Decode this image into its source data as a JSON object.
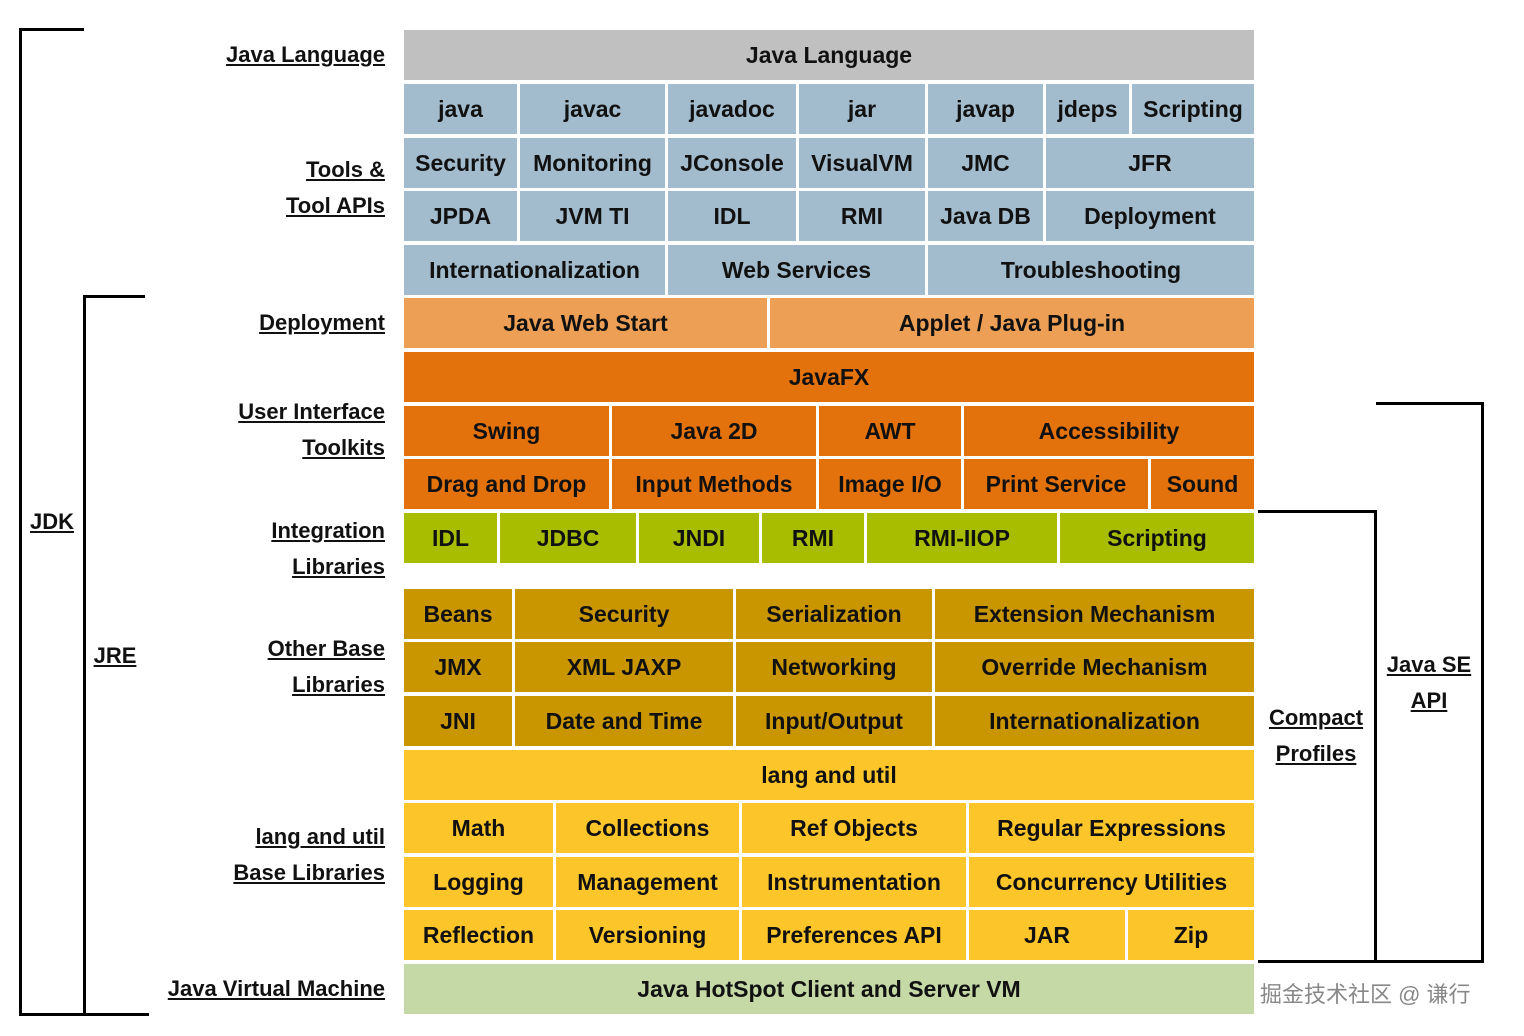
{
  "colors": {
    "language": "#c0c0c0",
    "tools": "#a3bccd",
    "deployment": "#ec9f55",
    "ui": "#e4720c",
    "integration": "#a8bd00",
    "other_base": "#c99600",
    "lang_util": "#fcc52a",
    "jvm": "#c5d9a6"
  },
  "row_labels": [
    {
      "lines": [
        "Java Language"
      ]
    },
    {
      "lines": [
        "Tools &",
        "Tool APIs"
      ]
    },
    {
      "lines": [
        "Deployment"
      ]
    },
    {
      "lines": [
        "User Interface",
        "Toolkits"
      ]
    },
    {
      "lines": [
        "Integration",
        "Libraries"
      ]
    },
    {
      "lines": [
        "Other Base",
        "Libraries"
      ]
    },
    {
      "lines": [
        "lang and util",
        "Base Libraries"
      ]
    },
    {
      "lines": [
        "Java Virtual Machine"
      ]
    }
  ],
  "side_labels": {
    "jdk": "JDK",
    "jre": "JRE",
    "compact_profiles": [
      "Compact",
      "Profiles"
    ],
    "java_se_api": [
      "Java SE",
      "API"
    ]
  },
  "groups": {
    "language": {
      "rows": [
        [
          "Java Language"
        ]
      ]
    },
    "tools": {
      "rows": [
        [
          "java",
          "javac",
          "javadoc",
          "jar",
          "javap",
          "jdeps",
          "Scripting"
        ],
        [
          "Security",
          "Monitoring",
          "JConsole",
          "VisualVM",
          "JMC",
          "JFR"
        ],
        [
          "JPDA",
          "JVM TI",
          "IDL",
          "RMI",
          "Java DB",
          "Deployment"
        ],
        [
          "Internationalization",
          "Web Services",
          "Troubleshooting"
        ]
      ]
    },
    "deployment": {
      "rows": [
        [
          "Java Web Start",
          "Applet / Java Plug-in"
        ]
      ]
    },
    "ui": {
      "rows": [
        [
          "JavaFX"
        ],
        [
          "Swing",
          "Java 2D",
          "AWT",
          "Accessibility"
        ],
        [
          "Drag and Drop",
          "Input Methods",
          "Image I/O",
          "Print Service",
          "Sound"
        ]
      ]
    },
    "integration": {
      "rows": [
        [
          "IDL",
          "JDBC",
          "JNDI",
          "RMI",
          "RMI-IIOP",
          "Scripting"
        ]
      ]
    },
    "other_base": {
      "rows": [
        [
          "Beans",
          "Security",
          "Serialization",
          "Extension Mechanism"
        ],
        [
          "JMX",
          "XML JAXP",
          "Networking",
          "Override Mechanism"
        ],
        [
          "JNI",
          "Date and Time",
          "Input/Output",
          "Internationalization"
        ]
      ]
    },
    "lang_util": {
      "rows": [
        [
          "lang and util"
        ],
        [
          "Math",
          "Collections",
          "Ref Objects",
          "Regular Expressions"
        ],
        [
          "Logging",
          "Management",
          "Instrumentation",
          "Concurrency Utilities"
        ],
        [
          "Reflection",
          "Versioning",
          "Preferences API",
          "JAR",
          "Zip"
        ]
      ]
    },
    "jvm": {
      "rows": [
        [
          "Java HotSpot Client and Server VM"
        ]
      ]
    }
  },
  "watermark": "掘金技术社区 @ 谦行"
}
